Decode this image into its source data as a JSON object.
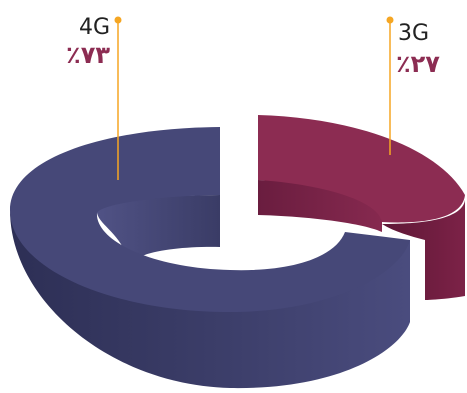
{
  "chart_data": {
    "type": "pie",
    "style": "3d-donut",
    "title": "",
    "legend": "none",
    "slices": [
      {
        "label": "4G",
        "value": 73,
        "value_label": "٪۷۳",
        "color": "#464878"
      },
      {
        "label": "3G",
        "value": 27,
        "value_label": "٪۲۷",
        "color": "#8c2c52"
      }
    ],
    "leader_line_color": "#f5a623"
  }
}
